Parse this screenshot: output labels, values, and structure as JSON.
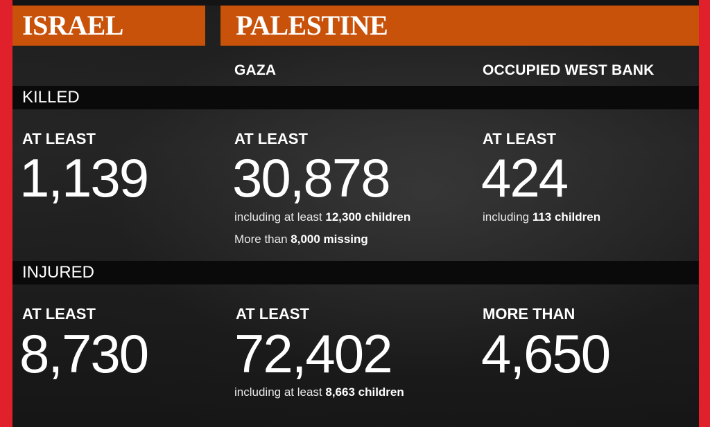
{
  "headers": {
    "israel": "ISRAEL",
    "palestine": "PALESTINE"
  },
  "subheaders": {
    "gaza": "GAZA",
    "west_bank": "OCCUPIED WEST BANK"
  },
  "sections": {
    "killed": "KILLED",
    "injured": "INJURED"
  },
  "killed": {
    "israel": {
      "prefix": "AT LEAST",
      "value": "1,139"
    },
    "gaza": {
      "prefix": "AT LEAST",
      "value": "30,878",
      "note1_text": "including at least ",
      "note1_bold": "12,300 children",
      "note2_text": "More than ",
      "note2_bold": "8,000 missing"
    },
    "west_bank": {
      "prefix": "AT LEAST",
      "value": "424",
      "note1_text": "including ",
      "note1_bold": "113 children"
    }
  },
  "injured": {
    "israel": {
      "prefix": "AT LEAST",
      "value": "8,730"
    },
    "gaza": {
      "prefix": "AT LEAST",
      "value": "72,402",
      "note1_text": "including at least ",
      "note1_bold": "8,663 children"
    },
    "west_bank": {
      "prefix": "MORE THAN",
      "value": "4,650"
    }
  },
  "colors": {
    "border": "#e0202a",
    "header": "#c9520a",
    "band": "#0a0a0a"
  }
}
